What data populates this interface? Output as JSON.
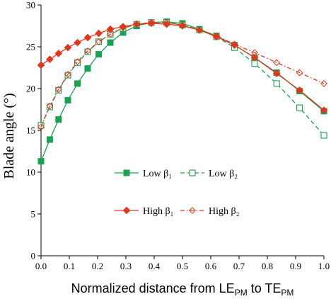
{
  "chart_data": {
    "type": "line",
    "xlabel": "Normalized distance from LE",
    "xlabel_sub1": "PM",
    "xlabel_mid": " to TE",
    "xlabel_sub2": "PM",
    "ylabel": "Blade angle (°)",
    "xlim": [
      0.0,
      1.0
    ],
    "ylim": [
      0,
      30
    ],
    "x_ticks": [
      "0.0",
      "0.1",
      "0.2",
      "0.3",
      "0.4",
      "0.5",
      "0.6",
      "0.7",
      "0.8",
      "0.9",
      "1.0"
    ],
    "y_ticks": [
      "0",
      "5",
      "10",
      "15",
      "20",
      "25",
      "30"
    ],
    "grid": false,
    "legend_placement": "lower-left",
    "series": [
      {
        "name": "Low β₁",
        "color": "#17a350",
        "marker": "square-filled",
        "line": "solid",
        "x": [
          0.0,
          0.031,
          0.062,
          0.095,
          0.129,
          0.165,
          0.204,
          0.245,
          0.29,
          0.338,
          0.39,
          0.444,
          0.5,
          0.56,
          0.62,
          0.684,
          0.755,
          0.833,
          0.914,
          1.0
        ],
        "y": [
          11.3,
          13.9,
          16.3,
          18.6,
          20.6,
          22.4,
          24.1,
          25.5,
          26.7,
          27.5,
          27.9,
          28.0,
          27.8,
          27.1,
          26.3,
          25.2,
          23.7,
          21.9,
          19.7,
          17.3
        ]
      },
      {
        "name": "Low β₂",
        "color": "#17a350",
        "marker": "square-open",
        "line": "dashed",
        "x": [
          0.0,
          0.031,
          0.062,
          0.095,
          0.129,
          0.165,
          0.204,
          0.245,
          0.29,
          0.338,
          0.39,
          0.444,
          0.5,
          0.56,
          0.62,
          0.684,
          0.755,
          0.833,
          0.914,
          1.0
        ],
        "y": [
          15.6,
          17.8,
          19.8,
          21.6,
          23.1,
          24.4,
          25.6,
          26.5,
          27.2,
          27.7,
          27.9,
          27.9,
          27.6,
          27.0,
          26.2,
          24.9,
          23.0,
          20.6,
          17.7,
          14.4
        ]
      },
      {
        "name": "High β₁",
        "color": "#e2361b",
        "marker": "diamond-filled",
        "line": "solid",
        "x": [
          0.0,
          0.031,
          0.062,
          0.095,
          0.129,
          0.165,
          0.204,
          0.245,
          0.29,
          0.338,
          0.39,
          0.444,
          0.5,
          0.56,
          0.62,
          0.684,
          0.755,
          0.833,
          0.914,
          1.0
        ],
        "y": [
          22.8,
          23.5,
          24.2,
          24.9,
          25.5,
          26.1,
          26.6,
          27.1,
          27.4,
          27.7,
          27.8,
          27.7,
          27.5,
          27.0,
          26.2,
          25.2,
          23.7,
          21.8,
          19.8,
          17.4
        ]
      },
      {
        "name": "High β₂",
        "color": "#e2361b",
        "marker": "diamond-open",
        "line": "dashdot",
        "x": [
          0.0,
          0.031,
          0.062,
          0.095,
          0.129,
          0.165,
          0.204,
          0.245,
          0.29,
          0.338,
          0.39,
          0.444,
          0.5,
          0.56,
          0.62,
          0.684,
          0.755,
          0.833,
          0.914,
          1.0
        ],
        "y": [
          15.4,
          17.9,
          19.9,
          21.7,
          23.2,
          24.5,
          25.6,
          26.5,
          27.3,
          27.7,
          27.9,
          27.9,
          27.6,
          27.0,
          26.3,
          25.3,
          24.3,
          23.1,
          21.9,
          20.6
        ]
      }
    ]
  }
}
